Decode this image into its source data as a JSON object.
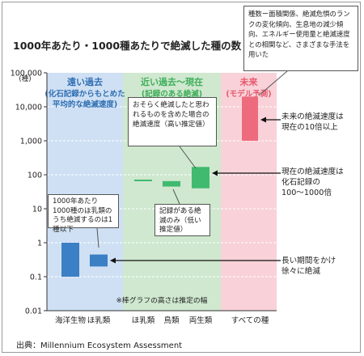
{
  "title": "1000年あたり・1000種あたりで絶滅した種の数",
  "source": "出典：Millennium Ecosystem Assessment",
  "y_unit": "(種)",
  "note": "※棒グラフの高さは推定の幅",
  "colors": {
    "past_band": "#cfe0f4",
    "recent_band": "#cfe8cf",
    "future_band": "#f8d2d8",
    "past_bar": "#3b7fc4",
    "recent_bar": "#3fba6e",
    "future_bar": "#ee6b7e",
    "past_header": "#2f6fb3",
    "recent_header": "#3fae5a",
    "future_header": "#e6596f"
  },
  "periods": [
    {
      "label": "遠い過去",
      "sub1": "(化石記録からもとめた",
      "sub2": "平均的な絶滅速度)"
    },
    {
      "label": "近い過去～現在",
      "sub1": "(記録のある絶滅)",
      "sub2": ""
    },
    {
      "label": "未来",
      "sub1": "(モデル予測)",
      "sub2": ""
    }
  ],
  "callouts": {
    "top_right": "種数ー面積関係、絶滅危惧のランクの変化傾向、生息地の減少傾向、エネルギー使用量と絶滅速度との相関など、さまざまな手法を用いた",
    "recent_high": "おそらく絶滅したと思われるものを含めた場合の絶滅速度（高い推定値）",
    "recent_low": "記録がある絶滅のみ（低い推定値）",
    "past_mammal": "1000年あたり1000種のほ乳類のうち絶滅するのは1種以下"
  },
  "side_notes": [
    {
      "line1": "未来の絶滅速度は",
      "line2": "現在の10倍以上",
      "line3": ""
    },
    {
      "line1": "現在の絶滅速度は",
      "line2": "化石記録の",
      "line3": "100～1000倍"
    },
    {
      "line1": "長い期間をかけ",
      "line2": "徐々に絶滅",
      "line3": ""
    }
  ],
  "chart_data": {
    "type": "bar",
    "title": "1000年あたり・1000種あたりで絶滅した種の数",
    "ylabel": "(種)",
    "yscale": "log",
    "ylim": [
      0.01,
      100000
    ],
    "yticks": [
      {
        "value": 0.01,
        "label": "0.01"
      },
      {
        "value": 0.1,
        "label": "0.1"
      },
      {
        "value": 1,
        "label": "1"
      },
      {
        "value": 10,
        "label": "10"
      },
      {
        "value": 100,
        "label": "100"
      },
      {
        "value": 1000,
        "label": "1,000"
      },
      {
        "value": 10000,
        "label": "10,000"
      },
      {
        "value": 100000,
        "label": "100,000"
      }
    ],
    "categories": [
      "海洋生物",
      "ほ乳類",
      "ほ乳類",
      "鳥類",
      "両生類",
      "すべての種"
    ],
    "series": [
      {
        "low": 0.1,
        "high": 1.0,
        "group": "past"
      },
      {
        "low": 0.2,
        "high": 0.45,
        "group": "past"
      },
      {
        "low": 68,
        "high": 72,
        "group": "recent"
      },
      {
        "low": 45,
        "high": 65,
        "group": "recent"
      },
      {
        "low": 40,
        "high": 170,
        "group": "recent"
      },
      {
        "low": 1000,
        "high": 20000,
        "group": "future"
      }
    ]
  }
}
